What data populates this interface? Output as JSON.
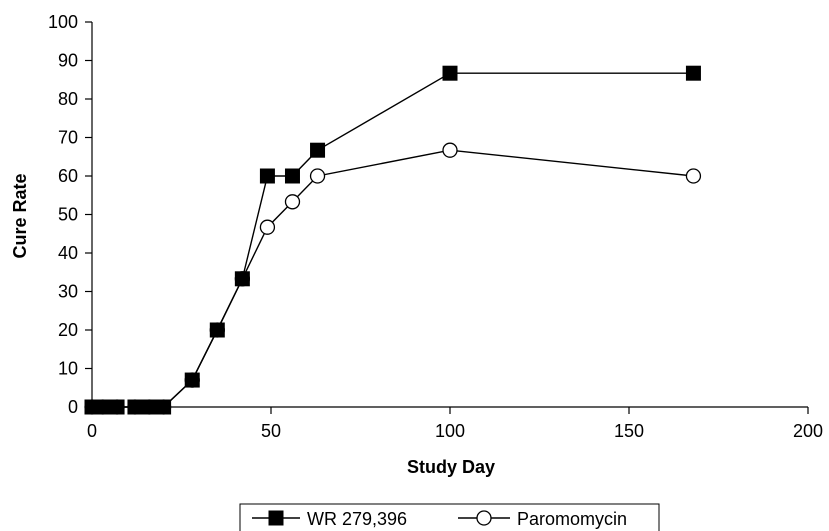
{
  "chart_data": {
    "type": "line",
    "title": "",
    "xlabel": "Study Day",
    "ylabel": "Cure Rate",
    "xlim": [
      0,
      200
    ],
    "ylim": [
      0,
      100
    ],
    "xticks": [
      0,
      50,
      100,
      150,
      200
    ],
    "yticks": [
      0,
      10,
      20,
      30,
      40,
      50,
      60,
      70,
      80,
      90,
      100
    ],
    "grid": false,
    "legend_position": "bottom",
    "series": [
      {
        "name": "WR 279,396",
        "marker": "filled-square",
        "color": "#000000",
        "points": [
          [
            0,
            0
          ],
          [
            3,
            0
          ],
          [
            7,
            0
          ],
          [
            12,
            0
          ],
          [
            16,
            0
          ],
          [
            20,
            0
          ],
          [
            28,
            7
          ],
          [
            35,
            20
          ],
          [
            42,
            33.3
          ],
          [
            49,
            60
          ],
          [
            56,
            60
          ],
          [
            63,
            66.7
          ],
          [
            100,
            86.7
          ],
          [
            168,
            86.7
          ]
        ]
      },
      {
        "name": "Paromomycin",
        "marker": "open-circle",
        "color": "#000000",
        "points": [
          [
            0,
            0
          ],
          [
            3,
            0
          ],
          [
            7,
            0
          ],
          [
            12,
            0
          ],
          [
            16,
            0
          ],
          [
            20,
            0
          ],
          [
            28,
            7
          ],
          [
            35,
            20
          ],
          [
            42,
            33.3
          ],
          [
            49,
            46.7
          ],
          [
            56,
            53.3
          ],
          [
            63,
            60
          ],
          [
            100,
            66.7
          ],
          [
            168,
            60
          ]
        ]
      }
    ]
  }
}
